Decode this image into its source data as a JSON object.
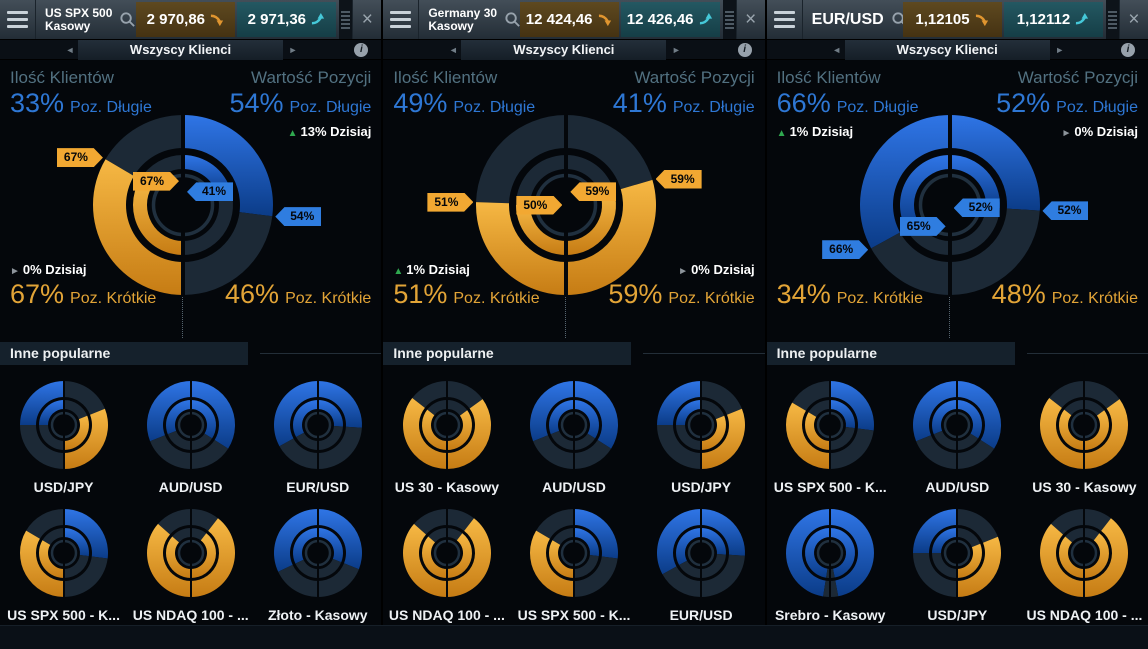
{
  "ui": {
    "subbar": {
      "label": "Wszyscy Klienci",
      "info_icon": "i"
    },
    "labels": {
      "clients": "Ilość Klientów",
      "value": "Wartość Pozycji",
      "long": "Poz. Długie",
      "short": "Poz. Krótkie",
      "other_popular": "Inne popularne"
    },
    "colors": {
      "long_blue": "#2f75e6",
      "long_blue_dark": "#0b3c88",
      "short_orange": "#f6b844",
      "short_orange_dark": "#c67c14",
      "minority_dark": "#1c2936",
      "tag_blue": "#2f7de0",
      "tag_orange": "#f2a832",
      "up_green": "#2fa84f",
      "flat_gray": "#8d949b",
      "text_blue": "#2e77d4",
      "text_orange": "#e2a437"
    }
  },
  "panels": [
    {
      "name1": "US SPX 500",
      "name2": "Kasowy",
      "sell": "2 970,86",
      "buy": "2 971,36",
      "sentiment": {
        "client": {
          "long": 33,
          "long_label": "33%",
          "short_label": "67%",
          "prev_long": 33,
          "today": {
            "label": "0% Dzisiaj",
            "dir": "flat",
            "pos": "bottom"
          }
        },
        "value": {
          "long": 54,
          "long_label": "54%",
          "short_label": "46%",
          "prev_long": 41,
          "today": {
            "label": "13% Dzisiaj",
            "dir": "up",
            "pos": "top"
          }
        },
        "callouts": {
          "outer_left": "67%",
          "inner_left": "67%",
          "inner_right": "41%",
          "outer_right": "54%"
        }
      },
      "popular": [
        {
          "label": "USD/JPY",
          "client_long": 50,
          "value_long": 38
        },
        {
          "label": "AUD/USD",
          "client_long": 62,
          "value_long": 68
        },
        {
          "label": "EUR/USD",
          "client_long": 66,
          "value_long": 52
        },
        {
          "label": "US SPX 500 - K...",
          "client_long": 33,
          "value_long": 54
        },
        {
          "label": "US NDAQ 100 - ...",
          "client_long": 27,
          "value_long": 21
        },
        {
          "label": "Złoto - Kasowy",
          "client_long": 64,
          "value_long": 62
        }
      ]
    },
    {
      "name1": "Germany 30",
      "name2": "Kasowy",
      "sell": "12 424,46",
      "buy": "12 426,46",
      "sentiment": {
        "client": {
          "long": 49,
          "long_label": "49%",
          "short_label": "51%",
          "prev_long": 50,
          "today": {
            "label": "1% Dzisiaj",
            "dir": "up",
            "pos": "bottom"
          }
        },
        "value": {
          "long": 41,
          "long_label": "41%",
          "short_label": "59%",
          "prev_long": 41,
          "today": {
            "label": "0% Dzisiaj",
            "dir": "flat",
            "pos": "bottom"
          }
        },
        "callouts": {
          "outer_left": "51%",
          "inner_left": "50%",
          "inner_right": "59%",
          "outer_right": "59%"
        }
      },
      "popular": [
        {
          "label": "US 30 - Kasowy",
          "client_long": 29,
          "value_long": 30
        },
        {
          "label": "AUD/USD",
          "client_long": 62,
          "value_long": 68
        },
        {
          "label": "USD/JPY",
          "client_long": 50,
          "value_long": 38
        },
        {
          "label": "US NDAQ 100 - ...",
          "client_long": 27,
          "value_long": 21
        },
        {
          "label": "US SPX 500 - K...",
          "client_long": 33,
          "value_long": 54
        },
        {
          "label": "EUR/USD",
          "client_long": 66,
          "value_long": 52
        }
      ]
    },
    {
      "name1": "EUR/USD",
      "name2": "",
      "sell": "1,12105",
      "buy": "1,12112",
      "sentiment": {
        "client": {
          "long": 66,
          "long_label": "66%",
          "short_label": "34%",
          "prev_long": 65,
          "today": {
            "label": "1% Dzisiaj",
            "dir": "up",
            "pos": "top"
          }
        },
        "value": {
          "long": 52,
          "long_label": "52%",
          "short_label": "48%",
          "prev_long": 52,
          "today": {
            "label": "0% Dzisiaj",
            "dir": "flat",
            "pos": "top"
          }
        },
        "callouts": {
          "outer_left": "66%",
          "inner_left": "65%",
          "inner_right": "52%",
          "outer_right": "52%"
        }
      },
      "popular": [
        {
          "label": "US SPX 500 - K...",
          "client_long": 33,
          "value_long": 54
        },
        {
          "label": "AUD/USD",
          "client_long": 62,
          "value_long": 68
        },
        {
          "label": "US 30 - Kasowy",
          "client_long": 29,
          "value_long": 30
        },
        {
          "label": "Srebro - Kasowy",
          "client_long": 95,
          "value_long": 94
        },
        {
          "label": "USD/JPY",
          "client_long": 50,
          "value_long": 38
        },
        {
          "label": "US NDAQ 100 - ...",
          "client_long": 27,
          "value_long": 21
        }
      ]
    }
  ],
  "chart_data": [
    {
      "type": "donut",
      "instrument": "US SPX 500 Kasowy",
      "client_count": {
        "long_pct": 33,
        "short_pct": 67,
        "previous_majority_pct": 67,
        "today_change": "0%"
      },
      "position_value": {
        "long_pct": 54,
        "short_pct": 46,
        "previous_majority_pct": 41,
        "today_change": "+13%"
      }
    },
    {
      "type": "donut",
      "instrument": "Germany 30 Kasowy",
      "client_count": {
        "long_pct": 49,
        "short_pct": 51,
        "previous_majority_pct": 50,
        "today_change": "+1%"
      },
      "position_value": {
        "long_pct": 41,
        "short_pct": 59,
        "previous_majority_pct": 59,
        "today_change": "0%"
      }
    },
    {
      "type": "donut",
      "instrument": "EUR/USD",
      "client_count": {
        "long_pct": 66,
        "short_pct": 34,
        "previous_majority_pct": 65,
        "today_change": "+1%"
      },
      "position_value": {
        "long_pct": 52,
        "short_pct": 48,
        "previous_majority_pct": 52,
        "today_change": "0%"
      }
    }
  ]
}
